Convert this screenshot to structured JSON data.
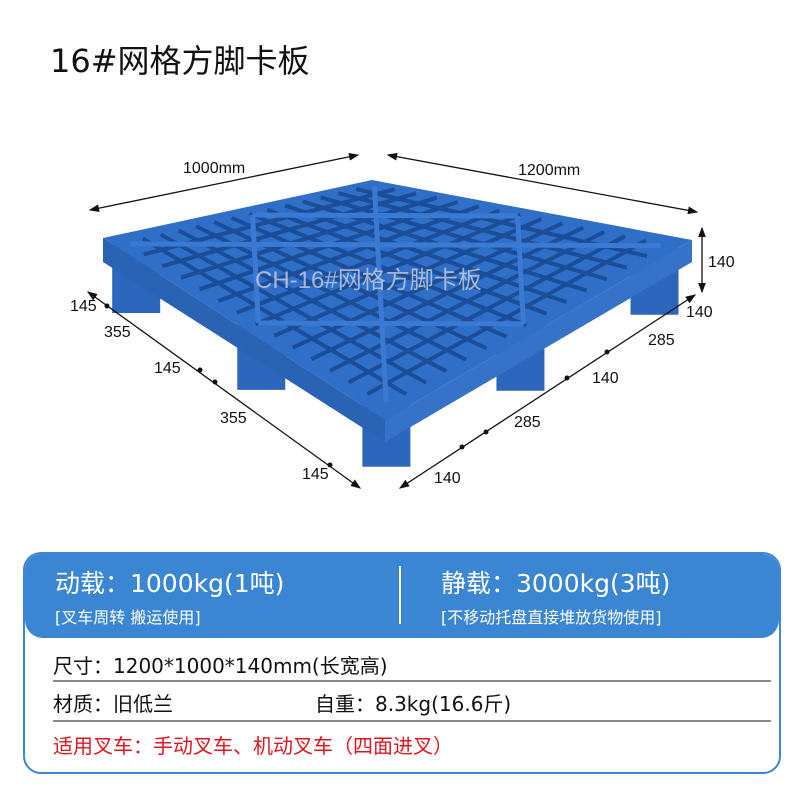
{
  "title": "16#网格方脚卡板",
  "watermark": "CH-16#网格方脚卡板",
  "product_color": "#2f6fc7",
  "dimensions": {
    "width_label": "1000mm",
    "length_label": "1200mm",
    "height_label": "140",
    "left_side": [
      "145",
      "355",
      "145",
      "355",
      "145"
    ],
    "right_side": [
      "140",
      "285",
      "140",
      "285",
      "140"
    ]
  },
  "specs": {
    "dynamic_load": "动载：1000kg(1吨)",
    "dynamic_note": "[叉车周转 搬运使用]",
    "static_load": "静载：3000kg(3吨)",
    "static_note": "[不移动托盘直接堆放货物使用]",
    "size": "尺寸：1200*1000*140mm(长宽高)",
    "material": "材质：旧低兰",
    "weight": "自重：8.3kg(16.6斤)",
    "forklift": "适用叉车：手动叉车、机动叉车（四面进叉）"
  }
}
